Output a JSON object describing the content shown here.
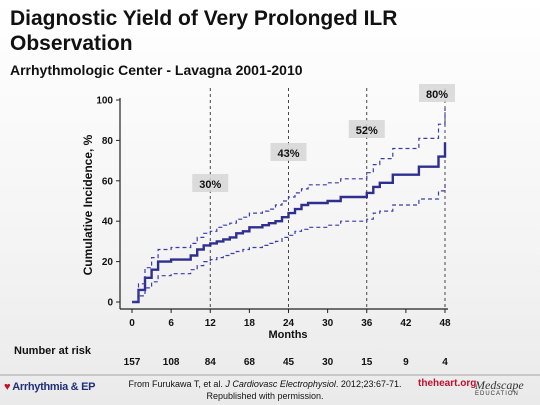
{
  "title": "Diagnostic Yield of Very Prolonged ILR Observation",
  "subtitle": "Arrhythmologic Center - Lavagna 2001-2010",
  "number_at_risk_label": "Number at risk",
  "citation": {
    "prefix": "From Furukawa T, et al. ",
    "journal": "J Cardiovasc Electrophysiol",
    "suffix": ". 2012;23:67-71.",
    "line2": "Republished with permission."
  },
  "logos": {
    "left": "Arrhythmia & EP",
    "heart": "theheart.org",
    "medscape": "Medscape",
    "medscape_sub": "EDUCATION"
  },
  "chart_data": {
    "type": "line",
    "title": "Diagnostic Yield of Very Prolonged ILR Observation",
    "subtitle": "Arrhythmologic Center - Lavagna 2001-2010",
    "xlabel": "Months",
    "ylabel": "Cumulative Incidence, %",
    "xlim": [
      0,
      48
    ],
    "ylim": [
      0,
      100
    ],
    "x_ticks": [
      0,
      6,
      12,
      18,
      24,
      30,
      36,
      42,
      48
    ],
    "y_ticks": [
      0,
      20,
      40,
      60,
      80,
      100
    ],
    "grid": false,
    "reference_lines_x": [
      12,
      24,
      36,
      48
    ],
    "annotations": [
      {
        "x": 12,
        "label": "30%"
      },
      {
        "x": 24,
        "label": "43%"
      },
      {
        "x": 36,
        "label": "52%"
      },
      {
        "x": 48,
        "label": "80%"
      }
    ],
    "number_at_risk": {
      "x": [
        0,
        6,
        12,
        18,
        24,
        30,
        36,
        42,
        48
      ],
      "values": [
        157,
        108,
        84,
        68,
        45,
        30,
        15,
        9,
        4
      ]
    },
    "series": [
      {
        "role": "estimate",
        "color": "#2e2f8f",
        "style": "solid",
        "points": [
          [
            0,
            0
          ],
          [
            1,
            0
          ],
          [
            1,
            6
          ],
          [
            2,
            6
          ],
          [
            2,
            12
          ],
          [
            3,
            12
          ],
          [
            3,
            16
          ],
          [
            4,
            16
          ],
          [
            4,
            20
          ],
          [
            6,
            20
          ],
          [
            6,
            21
          ],
          [
            9,
            21
          ],
          [
            9,
            23
          ],
          [
            10,
            23
          ],
          [
            10,
            26
          ],
          [
            11,
            26
          ],
          [
            11,
            28
          ],
          [
            12,
            28
          ],
          [
            12,
            29
          ],
          [
            13,
            29
          ],
          [
            13,
            30
          ],
          [
            14,
            30
          ],
          [
            14,
            31
          ],
          [
            15,
            31
          ],
          [
            15,
            32
          ],
          [
            16,
            32
          ],
          [
            16,
            34
          ],
          [
            17,
            34
          ],
          [
            17,
            35
          ],
          [
            18,
            35
          ],
          [
            18,
            37
          ],
          [
            20,
            37
          ],
          [
            20,
            38
          ],
          [
            21,
            38
          ],
          [
            21,
            39
          ],
          [
            22,
            39
          ],
          [
            22,
            40
          ],
          [
            23,
            40
          ],
          [
            23,
            42
          ],
          [
            24,
            42
          ],
          [
            24,
            44
          ],
          [
            25,
            44
          ],
          [
            25,
            46
          ],
          [
            26,
            46
          ],
          [
            26,
            48
          ],
          [
            27,
            48
          ],
          [
            27,
            49
          ],
          [
            30,
            49
          ],
          [
            30,
            50
          ],
          [
            32,
            50
          ],
          [
            32,
            52
          ],
          [
            36,
            52
          ],
          [
            36,
            54
          ],
          [
            37,
            54
          ],
          [
            37,
            57
          ],
          [
            38,
            57
          ],
          [
            38,
            59
          ],
          [
            40,
            59
          ],
          [
            40,
            63
          ],
          [
            44,
            63
          ],
          [
            44,
            67
          ],
          [
            47,
            67
          ],
          [
            47,
            72
          ],
          [
            48,
            72
          ],
          [
            48,
            79
          ]
        ]
      },
      {
        "role": "upper_ci",
        "color": "#3b3ca6",
        "style": "dashed",
        "points": [
          [
            0,
            0
          ],
          [
            1,
            0
          ],
          [
            1,
            9
          ],
          [
            2,
            9
          ],
          [
            2,
            17
          ],
          [
            3,
            17
          ],
          [
            3,
            22
          ],
          [
            4,
            22
          ],
          [
            4,
            26
          ],
          [
            6,
            26
          ],
          [
            6,
            27
          ],
          [
            9,
            27
          ],
          [
            9,
            29
          ],
          [
            10,
            29
          ],
          [
            10,
            32
          ],
          [
            11,
            32
          ],
          [
            11,
            34
          ],
          [
            12,
            34
          ],
          [
            12,
            35
          ],
          [
            13,
            35
          ],
          [
            13,
            37
          ],
          [
            14,
            37
          ],
          [
            14,
            38
          ],
          [
            15,
            38
          ],
          [
            15,
            39
          ],
          [
            16,
            39
          ],
          [
            16,
            41
          ],
          [
            17,
            41
          ],
          [
            17,
            42
          ],
          [
            18,
            42
          ],
          [
            18,
            44
          ],
          [
            20,
            44
          ],
          [
            20,
            45
          ],
          [
            21,
            45
          ],
          [
            21,
            46
          ],
          [
            22,
            46
          ],
          [
            22,
            48
          ],
          [
            23,
            48
          ],
          [
            23,
            50
          ],
          [
            24,
            50
          ],
          [
            24,
            52
          ],
          [
            25,
            52
          ],
          [
            25,
            54
          ],
          [
            26,
            54
          ],
          [
            26,
            56
          ],
          [
            27,
            56
          ],
          [
            27,
            58
          ],
          [
            30,
            58
          ],
          [
            30,
            59
          ],
          [
            32,
            59
          ],
          [
            32,
            61
          ],
          [
            36,
            61
          ],
          [
            36,
            64
          ],
          [
            37,
            64
          ],
          [
            37,
            68
          ],
          [
            38,
            68
          ],
          [
            38,
            71
          ],
          [
            40,
            71
          ],
          [
            40,
            76
          ],
          [
            44,
            76
          ],
          [
            44,
            81
          ],
          [
            47,
            81
          ],
          [
            47,
            88
          ],
          [
            48,
            88
          ],
          [
            48,
            96
          ]
        ]
      },
      {
        "role": "lower_ci",
        "color": "#3b3ca6",
        "style": "dashed",
        "points": [
          [
            0,
            0
          ],
          [
            1,
            0
          ],
          [
            1,
            3
          ],
          [
            2,
            3
          ],
          [
            2,
            7
          ],
          [
            3,
            7
          ],
          [
            3,
            10
          ],
          [
            4,
            10
          ],
          [
            4,
            13
          ],
          [
            6,
            13
          ],
          [
            6,
            14
          ],
          [
            9,
            14
          ],
          [
            9,
            16
          ],
          [
            10,
            16
          ],
          [
            10,
            18
          ],
          [
            11,
            18
          ],
          [
            11,
            20
          ],
          [
            12,
            20
          ],
          [
            12,
            21
          ],
          [
            13,
            21
          ],
          [
            13,
            22
          ],
          [
            14,
            22
          ],
          [
            14,
            23
          ],
          [
            15,
            23
          ],
          [
            15,
            24
          ],
          [
            16,
            24
          ],
          [
            16,
            25
          ],
          [
            17,
            25
          ],
          [
            17,
            26
          ],
          [
            18,
            26
          ],
          [
            18,
            27
          ],
          [
            20,
            27
          ],
          [
            20,
            28
          ],
          [
            21,
            28
          ],
          [
            21,
            29
          ],
          [
            22,
            29
          ],
          [
            22,
            30
          ],
          [
            23,
            30
          ],
          [
            23,
            32
          ],
          [
            24,
            32
          ],
          [
            24,
            33
          ],
          [
            25,
            33
          ],
          [
            25,
            35
          ],
          [
            26,
            35
          ],
          [
            26,
            36
          ],
          [
            27,
            36
          ],
          [
            27,
            37
          ],
          [
            30,
            37
          ],
          [
            30,
            38
          ],
          [
            32,
            38
          ],
          [
            32,
            40
          ],
          [
            36,
            40
          ],
          [
            36,
            41
          ],
          [
            37,
            41
          ],
          [
            37,
            44
          ],
          [
            38,
            44
          ],
          [
            38,
            45
          ],
          [
            40,
            45
          ],
          [
            40,
            48
          ],
          [
            44,
            48
          ],
          [
            44,
            51
          ],
          [
            47,
            51
          ],
          [
            47,
            55
          ],
          [
            48,
            55
          ],
          [
            48,
            60
          ]
        ]
      }
    ]
  }
}
